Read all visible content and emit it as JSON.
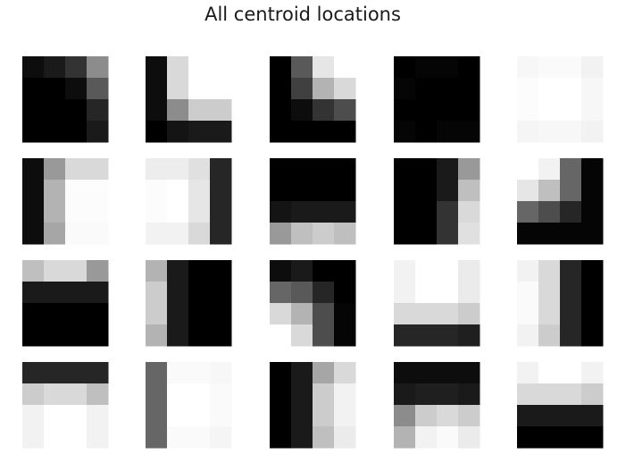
{
  "title": "All centroid locations",
  "chart_data": {
    "type": "heatmap",
    "title": "All centroid locations",
    "colormap": "gray",
    "value_range": [
      0,
      1
    ],
    "rows": 4,
    "cols": 5,
    "tiles": [
      [
        [
          0.05,
          0.1,
          0.2,
          0.55
        ],
        [
          0.0,
          0.0,
          0.05,
          0.35
        ],
        [
          0.0,
          0.0,
          0.0,
          0.15
        ],
        [
          0.0,
          0.0,
          0.0,
          0.1
        ]
      ],
      [
        [
          0.05,
          0.85,
          1.0,
          1.0
        ],
        [
          0.05,
          0.85,
          1.0,
          1.0
        ],
        [
          0.05,
          0.55,
          0.8,
          0.8
        ],
        [
          0.0,
          0.08,
          0.1,
          0.1
        ]
      ],
      [
        [
          0.0,
          0.35,
          0.9,
          1.0
        ],
        [
          0.0,
          0.25,
          0.7,
          0.85
        ],
        [
          0.0,
          0.05,
          0.2,
          0.3
        ],
        [
          0.0,
          0.0,
          0.0,
          0.0
        ]
      ],
      [
        [
          0.0,
          0.02,
          0.02,
          0.0
        ],
        [
          0.02,
          0.0,
          0.0,
          0.0
        ],
        [
          0.0,
          0.0,
          0.0,
          0.0
        ],
        [
          0.02,
          0.0,
          0.02,
          0.02
        ]
      ],
      [
        [
          0.97,
          0.98,
          0.98,
          0.95
        ],
        [
          0.99,
          1.0,
          1.0,
          0.97
        ],
        [
          0.99,
          1.0,
          1.0,
          0.97
        ],
        [
          0.96,
          0.97,
          0.97,
          0.95
        ]
      ],
      [
        [
          0.05,
          0.6,
          0.85,
          0.85
        ],
        [
          0.05,
          0.7,
          0.99,
          0.99
        ],
        [
          0.05,
          0.7,
          0.99,
          0.99
        ],
        [
          0.05,
          0.65,
          0.98,
          0.98
        ]
      ],
      [
        [
          0.93,
          0.93,
          0.88,
          0.15
        ],
        [
          0.99,
          1.0,
          0.9,
          0.15
        ],
        [
          0.99,
          1.0,
          0.9,
          0.15
        ],
        [
          0.95,
          0.95,
          0.85,
          0.15
        ]
      ],
      [
        [
          0.0,
          0.0,
          0.0,
          0.0
        ],
        [
          0.0,
          0.0,
          0.0,
          0.0
        ],
        [
          0.08,
          0.1,
          0.1,
          0.1
        ],
        [
          0.6,
          0.75,
          0.8,
          0.75
        ]
      ],
      [
        [
          0.0,
          0.0,
          0.1,
          0.6
        ],
        [
          0.0,
          0.0,
          0.1,
          0.75
        ],
        [
          0.0,
          0.0,
          0.2,
          0.85
        ],
        [
          0.0,
          0.0,
          0.2,
          0.88
        ]
      ],
      [
        [
          1.0,
          0.95,
          0.4,
          0.02
        ],
        [
          0.9,
          0.75,
          0.4,
          0.02
        ],
        [
          0.4,
          0.3,
          0.15,
          0.02
        ],
        [
          0.02,
          0.02,
          0.02,
          0.02
        ]
      ],
      [
        [
          0.75,
          0.85,
          0.85,
          0.6
        ],
        [
          0.1,
          0.1,
          0.1,
          0.1
        ],
        [
          0.0,
          0.0,
          0.0,
          0.0
        ],
        [
          0.0,
          0.0,
          0.0,
          0.0
        ]
      ],
      [
        [
          0.7,
          0.1,
          0.0,
          0.0
        ],
        [
          0.8,
          0.1,
          0.0,
          0.0
        ],
        [
          0.8,
          0.1,
          0.0,
          0.0
        ],
        [
          0.7,
          0.1,
          0.0,
          0.0
        ]
      ],
      [
        [
          0.05,
          0.1,
          0.0,
          0.0
        ],
        [
          0.4,
          0.35,
          0.15,
          0.0
        ],
        [
          0.85,
          0.7,
          0.3,
          0.02
        ],
        [
          1.0,
          0.85,
          0.3,
          0.02
        ]
      ],
      [
        [
          0.95,
          1.0,
          1.0,
          0.92
        ],
        [
          0.95,
          1.0,
          1.0,
          0.92
        ],
        [
          0.85,
          0.85,
          0.85,
          0.8
        ],
        [
          0.15,
          0.15,
          0.15,
          0.12
        ]
      ],
      [
        [
          0.95,
          0.85,
          0.15,
          0.0
        ],
        [
          0.98,
          0.85,
          0.15,
          0.0
        ],
        [
          0.98,
          0.85,
          0.15,
          0.0
        ],
        [
          0.95,
          0.8,
          0.15,
          0.0
        ]
      ],
      [
        [
          0.15,
          0.15,
          0.15,
          0.15
        ],
        [
          0.8,
          0.85,
          0.85,
          0.75
        ],
        [
          0.95,
          1.0,
          1.0,
          0.95
        ],
        [
          0.95,
          1.0,
          1.0,
          0.95
        ]
      ],
      [
        [
          0.4,
          0.98,
          0.98,
          0.97
        ],
        [
          0.4,
          1.0,
          1.0,
          0.98
        ],
        [
          0.4,
          1.0,
          1.0,
          0.98
        ],
        [
          0.4,
          0.98,
          0.98,
          0.96
        ]
      ],
      [
        [
          0.0,
          0.1,
          0.65,
          0.85
        ],
        [
          0.0,
          0.1,
          0.8,
          0.95
        ],
        [
          0.0,
          0.1,
          0.8,
          0.95
        ],
        [
          0.0,
          0.1,
          0.75,
          0.92
        ]
      ],
      [
        [
          0.05,
          0.05,
          0.05,
          0.05
        ],
        [
          0.1,
          0.12,
          0.12,
          0.1
        ],
        [
          0.55,
          0.8,
          0.85,
          0.8
        ],
        [
          0.7,
          0.95,
          0.98,
          0.92
        ]
      ],
      [
        [
          0.95,
          1.0,
          1.0,
          0.95
        ],
        [
          0.85,
          0.85,
          0.85,
          0.8
        ],
        [
          0.1,
          0.1,
          0.1,
          0.1
        ],
        [
          0.0,
          0.0,
          0.0,
          0.0
        ]
      ]
    ]
  }
}
